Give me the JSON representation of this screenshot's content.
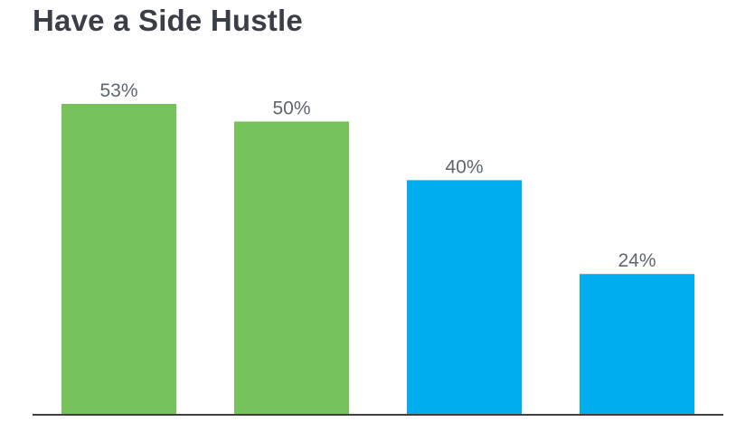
{
  "chart_data": {
    "type": "bar",
    "title": "Have a Side Hustle",
    "xlabel": "",
    "ylabel": "",
    "categories": [
      "",
      "",
      "",
      ""
    ],
    "values": [
      53,
      50,
      40,
      24
    ],
    "value_labels": [
      "53%",
      "50%",
      "40%",
      "24%"
    ],
    "bar_colors": [
      "#77c35b",
      "#77c35b",
      "#00aeef",
      "#00aeef"
    ],
    "ylim": [
      0,
      53
    ],
    "grid": false,
    "legend": "none"
  },
  "colors": {
    "title": "#3a3f47",
    "label": "#5f6670",
    "baseline": "#404040"
  }
}
